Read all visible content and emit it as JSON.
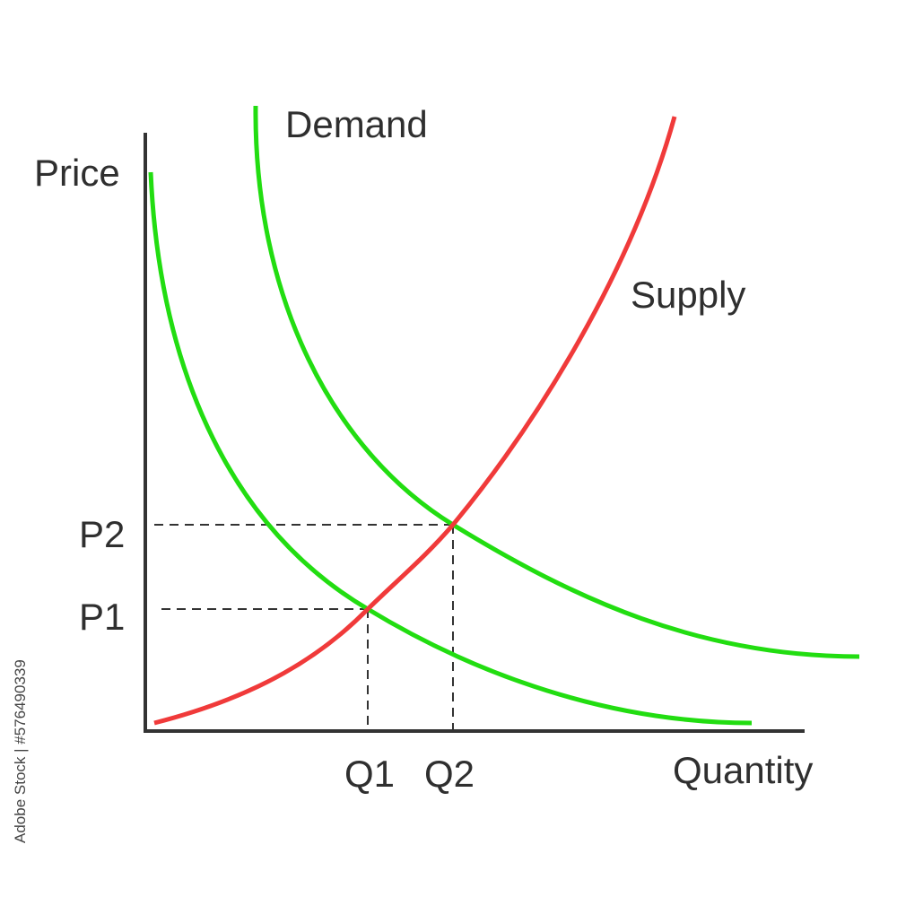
{
  "axes": {
    "y_label": "Price",
    "x_label": "Quantity"
  },
  "curves": {
    "demand": "Demand",
    "supply": "Supply"
  },
  "prices": [
    "P1",
    "P2"
  ],
  "quantities": [
    "Q1",
    "Q2"
  ],
  "watermark": "Adobe Stock | #576490339"
}
